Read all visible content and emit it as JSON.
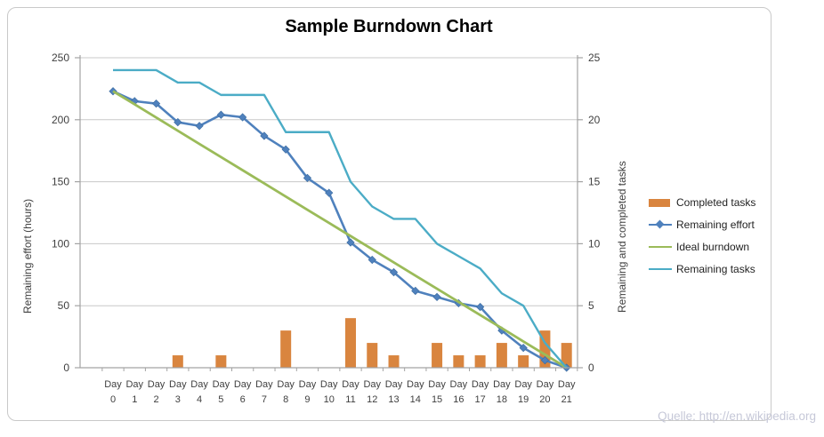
{
  "title": "Sample Burndown Chart",
  "source_note": "Quelle: http://en.wikipedia.org",
  "colors": {
    "completed_tasks": "#D9853F",
    "remaining_effort": "#4F81BD",
    "ideal_burndown": "#9BBB59",
    "remaining_tasks": "#4BACC6",
    "gridline": "#c8c8c8",
    "axis_line": "#a3a3a3",
    "tick_text": "#3f3f3f",
    "title_text": "#000000",
    "source_text": "#c6c8d8"
  },
  "chart_data": {
    "type": "combo bar+line",
    "title": "Sample Burndown Chart",
    "categories": [
      "Day 0",
      "Day 1",
      "Day 2",
      "Day 3",
      "Day 4",
      "Day 5",
      "Day 6",
      "Day 7",
      "Day 8",
      "Day 9",
      "Day 10",
      "Day 11",
      "Day 12",
      "Day 13",
      "Day 14",
      "Day 15",
      "Day 16",
      "Day 17",
      "Day 18",
      "Day 19",
      "Day 20",
      "Day 21"
    ],
    "series": [
      {
        "name": "Completed tasks",
        "type": "bar",
        "axis": "right",
        "color": "#D9853F",
        "values": [
          0,
          0,
          0,
          1,
          0,
          1,
          0,
          0,
          3,
          0,
          0,
          4,
          2,
          1,
          0,
          2,
          1,
          1,
          2,
          1,
          3,
          2
        ]
      },
      {
        "name": "Remaining effort",
        "type": "line",
        "marker": "diamond",
        "axis": "left",
        "color": "#4F81BD",
        "values": [
          223,
          215,
          213,
          198,
          195,
          204,
          202,
          187,
          176,
          153,
          141,
          101,
          87,
          77,
          62,
          57,
          52,
          49,
          30,
          16,
          6,
          0
        ]
      },
      {
        "name": "Ideal burndown",
        "type": "line",
        "axis": "left",
        "color": "#9BBB59",
        "values": [
          223,
          212.4,
          201.8,
          191.1,
          180.5,
          169.9,
          159.3,
          148.7,
          138,
          127.4,
          116.8,
          106.2,
          95.6,
          84.9,
          74.3,
          63.7,
          53.1,
          42.5,
          31.9,
          21.2,
          10.6,
          0
        ]
      },
      {
        "name": "Remaining tasks",
        "type": "line",
        "axis": "right",
        "color": "#4BACC6",
        "values": [
          24,
          24,
          24,
          23,
          23,
          22,
          22,
          22,
          19,
          19,
          19,
          15,
          13,
          12,
          12,
          10,
          9,
          8,
          6,
          5,
          2,
          0
        ]
      }
    ],
    "left_axis": {
      "label": "Remaining effort (hours)",
      "ticks": [
        0,
        50,
        100,
        150,
        200,
        250
      ],
      "range": [
        0,
        250
      ]
    },
    "right_axis": {
      "label": "Remaining and completed tasks",
      "ticks": [
        0,
        5,
        10,
        15,
        20,
        25
      ],
      "range": [
        0,
        25
      ]
    },
    "grid": true,
    "legend_position": "right"
  }
}
